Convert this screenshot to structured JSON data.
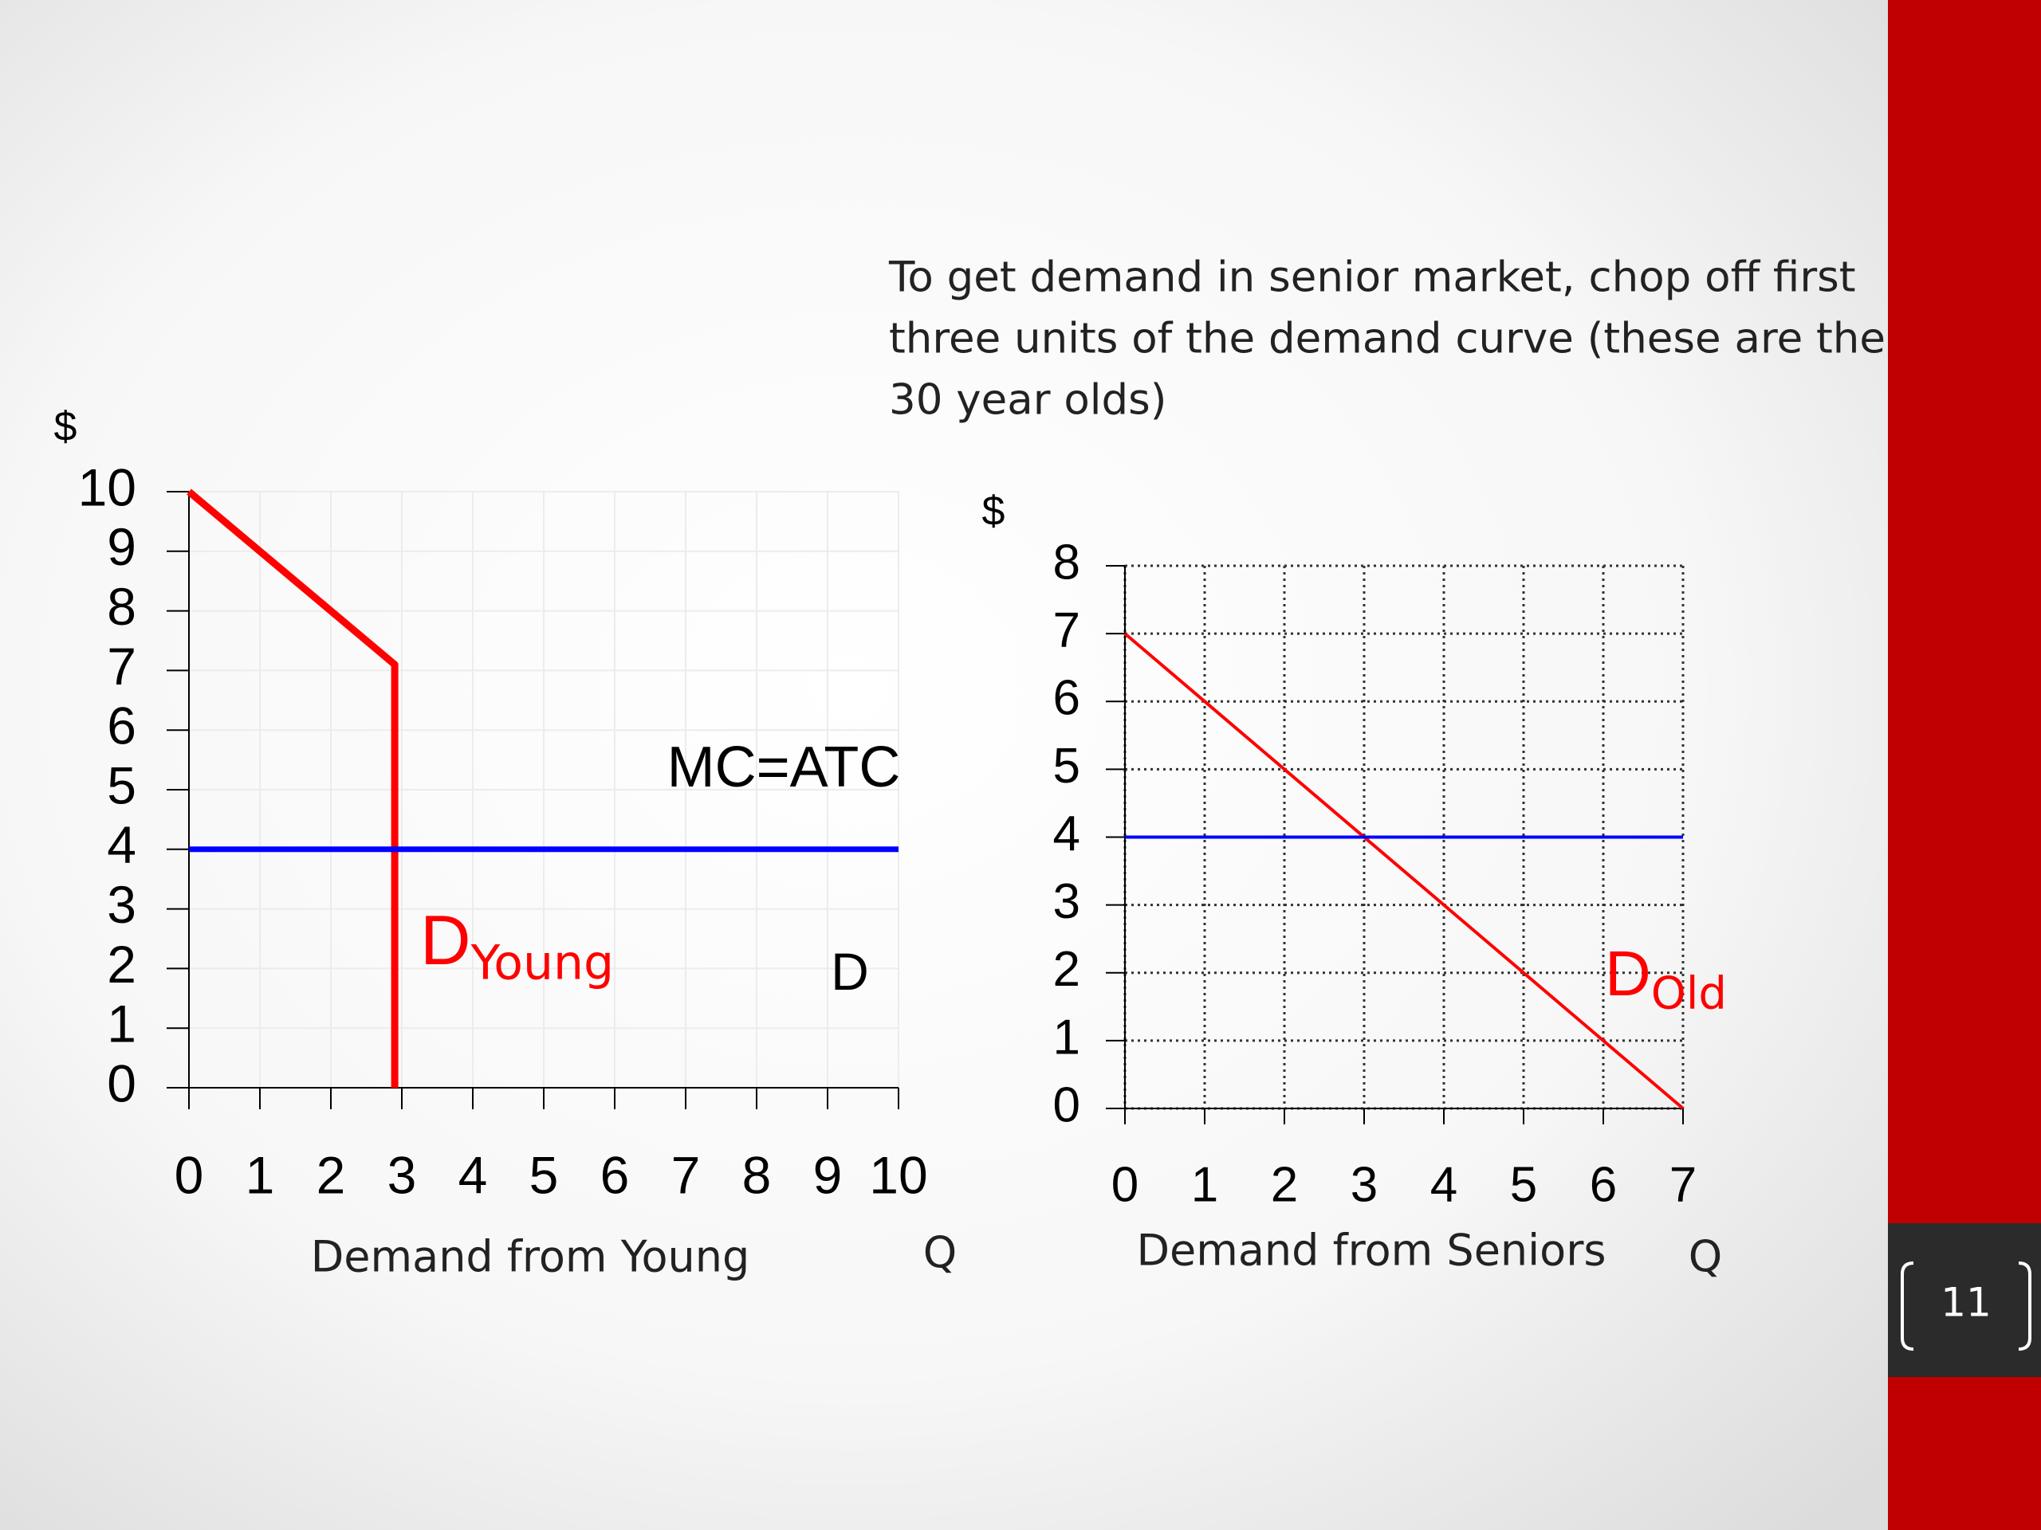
{
  "slide": {
    "text_lines": [
      "To get demand in senior market, chop off first",
      "three units of the demand curve (these are the",
      "30 year olds)"
    ],
    "page_number": "11"
  },
  "chart_data": [
    {
      "type": "line",
      "y_label": "$",
      "x_label": "Demand from Young",
      "x_unit": "Q",
      "xlim": [
        0,
        10
      ],
      "xticks": [
        0,
        1,
        2,
        3,
        4,
        5,
        6,
        7,
        8,
        9,
        10
      ],
      "ylim": [
        0,
        10
      ],
      "yticks": [
        0,
        1,
        2,
        3,
        4,
        5,
        6,
        7,
        8,
        9,
        10
      ],
      "grid": true,
      "grid_style": "solid",
      "series": [
        {
          "color": "#ff0000",
          "x": [
            0,
            2.9,
            2.9
          ],
          "values": [
            10,
            7.1,
            0
          ]
        },
        {
          "color": "#0000ff",
          "x": [
            0,
            10
          ],
          "values": [
            4,
            4
          ]
        }
      ],
      "annotations": [
        {
          "text": "MC=ATC",
          "color": "#000000"
        },
        {
          "text": "D",
          "color": "#000000"
        },
        {
          "text": "D",
          "subscript": "Young",
          "color": "#ff0000"
        }
      ]
    },
    {
      "type": "line",
      "y_label": "$",
      "x_label": "Demand from Seniors",
      "x_unit": "Q",
      "xlim": [
        0,
        7
      ],
      "xticks": [
        0,
        1,
        2,
        3,
        4,
        5,
        6,
        7
      ],
      "ylim": [
        0,
        8
      ],
      "yticks": [
        0,
        1,
        2,
        3,
        4,
        5,
        6,
        7,
        8
      ],
      "grid": true,
      "grid_style": "dotted",
      "series": [
        {
          "color": "#ff0000",
          "x": [
            0,
            7
          ],
          "values": [
            7,
            0
          ]
        },
        {
          "color": "#0000ff",
          "x": [
            0,
            7
          ],
          "values": [
            4,
            4
          ]
        }
      ],
      "annotations": [
        {
          "text": "D",
          "subscript": "Old",
          "color": "#ff0000"
        }
      ]
    }
  ]
}
